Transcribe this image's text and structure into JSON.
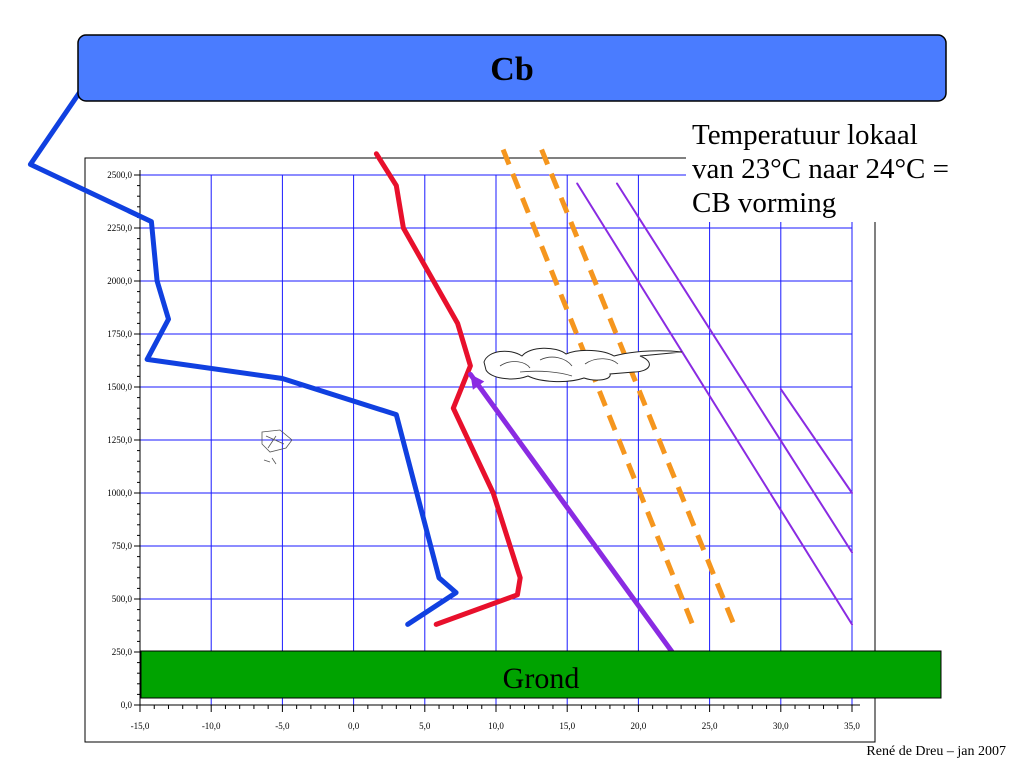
{
  "banner": {
    "label": "Cb",
    "color": "#4a7cff"
  },
  "ground": {
    "label": "Grond",
    "color": "#00a300"
  },
  "note": {
    "lines": [
      "Temperatuur lokaal",
      "van 23°C naar 24°C =",
      "CB vorming"
    ]
  },
  "credit": "René de Dreu – jan 2007",
  "chart_data": {
    "type": "line",
    "xlim": [
      -15,
      35
    ],
    "ylim": [
      0,
      2600
    ],
    "x_ticks": [
      -15,
      -10,
      -5,
      0,
      5,
      10,
      15,
      20,
      25,
      30,
      35
    ],
    "x_tick_labels": [
      "-15,0",
      "-10,0",
      "-5,0",
      "0,0",
      "5,0",
      "10,0",
      "15,0",
      "20,0",
      "25,0",
      "30,0",
      "35,0"
    ],
    "y_ticks": [
      0,
      250,
      500,
      750,
      1000,
      1250,
      1500,
      1750,
      2000,
      2250,
      2500
    ],
    "y_tick_labels": [
      "0,0",
      "250,0",
      "500,0",
      "750,0",
      "1000,0",
      "1250,0",
      "1500,0",
      "1750,0",
      "2000,0",
      "2250,0",
      "2500,0"
    ],
    "grid": true,
    "series": [
      {
        "color": "#1040e0",
        "style": "solid",
        "width": 5,
        "x": [
          3.8,
          7.2,
          6.0,
          3.0,
          -5.0,
          -14.5,
          -13.0,
          -13.8,
          -14.2,
          -22.7,
          -17.3
        ],
        "y": [
          380,
          530,
          600,
          1370,
          1540,
          1630,
          1820,
          2000,
          2280,
          2550,
          3080
        ]
      },
      {
        "color": "#e8102c",
        "style": "solid",
        "width": 5,
        "x": [
          5.8,
          11.5,
          11.7,
          9.8,
          7.0,
          8.2,
          7.3,
          3.5,
          3.0,
          1.6
        ],
        "y": [
          380,
          520,
          600,
          1000,
          1400,
          1600,
          1800,
          2250,
          2450,
          2600
        ]
      },
      {
        "color": "#8a2be2",
        "style": "solid",
        "width": 5,
        "x": [
          8.2,
          22.7
        ],
        "y": [
          1560,
          220
        ]
      },
      {
        "color": "#8a2be2",
        "style": "solid",
        "width": 2,
        "x": [
          15.7,
          35.0
        ],
        "y": [
          2460,
          380
        ]
      },
      {
        "color": "#8a2be2",
        "style": "solid",
        "width": 2,
        "x": [
          18.5,
          35.0
        ],
        "y": [
          2460,
          720
        ]
      },
      {
        "color": "#8a2be2",
        "style": "solid",
        "width": 2,
        "x": [
          30.0,
          35.0
        ],
        "y": [
          1490,
          1000
        ]
      },
      {
        "color": "#f5961e",
        "style": "dashed",
        "width": 5,
        "x": [
          10.5,
          23.8
        ],
        "y": [
          2620,
          380
        ]
      },
      {
        "color": "#f5961e",
        "style": "dashed",
        "width": 5,
        "x": [
          13.2,
          26.7
        ],
        "y": [
          2620,
          380
        ]
      }
    ]
  }
}
